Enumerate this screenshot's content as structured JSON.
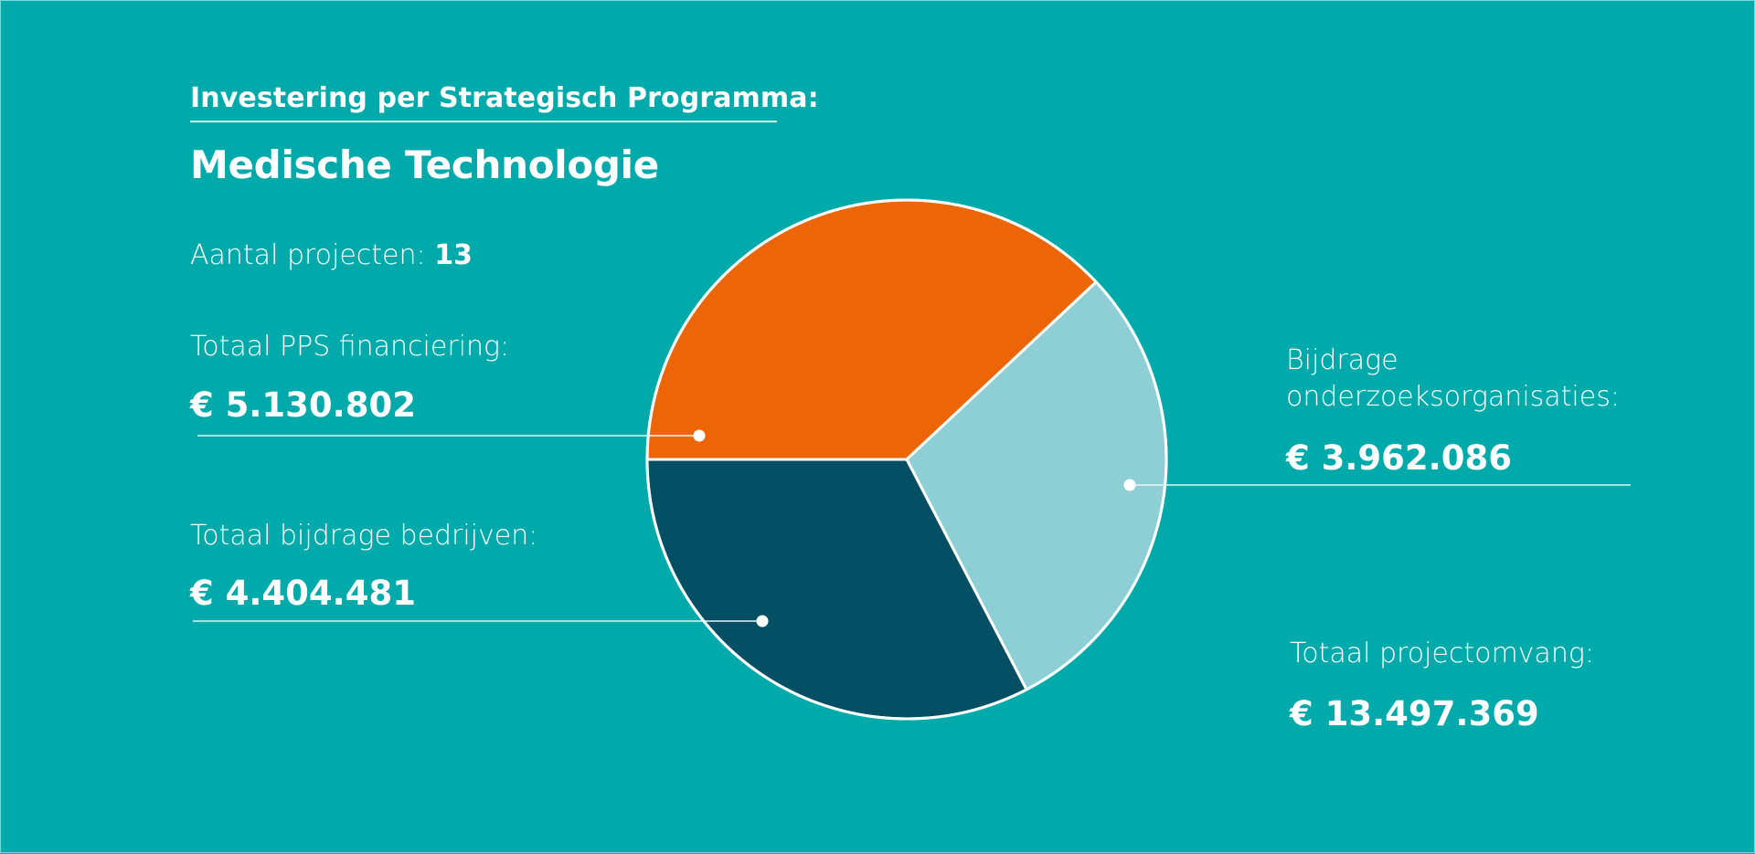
{
  "header": {
    "subtitle": "Investering per Strategisch Programma:",
    "title": "Medische Technologie"
  },
  "project_count": {
    "label": "Aantal projecten: ",
    "value": "13"
  },
  "stats": {
    "pps": {
      "label": "Totaal PPS financiering:",
      "value": "€ 5.130.802"
    },
    "bedrijven": {
      "label": "Totaal bijdrage bedrijven:",
      "value": "€ 4.404.481"
    },
    "onderzoek": {
      "label_line1": "Bijdrage",
      "label_line2": "onderzoeksorganisaties:",
      "value": "€ 3.962.086"
    },
    "totaal": {
      "label": "Totaal projectomvang:",
      "value": "€ 13.497.369"
    }
  },
  "colors": {
    "background": "#00AAAA",
    "pps": "#EC6608",
    "onderzoek": "#8ECFD5",
    "bedrijven": "#044F63",
    "stroke": "#FFFFFF"
  },
  "chart_data": {
    "type": "pie",
    "title": "Medische Technologie",
    "subtitle": "Investering per Strategisch Programma:",
    "slices": [
      {
        "name": "Totaal PPS financiering",
        "value": 5130802,
        "color": "#EC6608"
      },
      {
        "name": "Bijdrage onderzoeksorganisaties",
        "value": 3962086,
        "color": "#8ECFD5"
      },
      {
        "name": "Totaal bijdrage bedrijven",
        "value": 4404481,
        "color": "#044F63"
      }
    ],
    "total": 13497369,
    "start_angle_deg": 180,
    "direction": "clockwise",
    "legend": "annotated-labels"
  }
}
